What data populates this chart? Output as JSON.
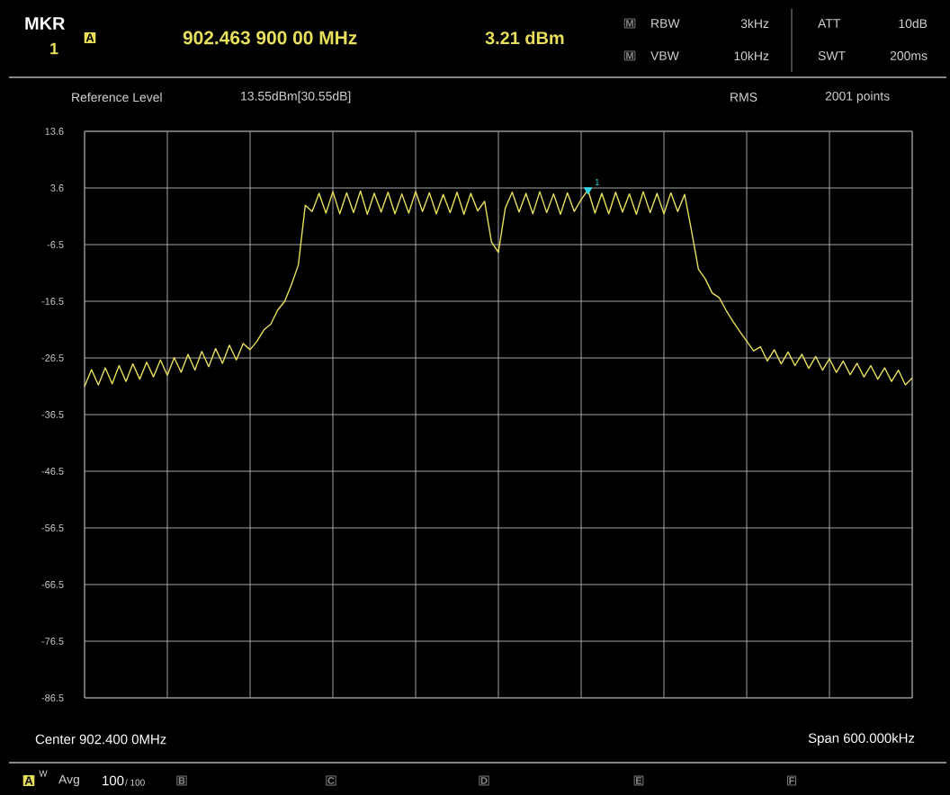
{
  "chart_data": {
    "type": "line",
    "tick_labels": "y",
    "grid": true,
    "marker": "none",
    "line_style": "solid",
    "categories": [
      null,
      null,
      null,
      null,
      null,
      null,
      null,
      null,
      null,
      null,
      null,
      null,
      null,
      null,
      null,
      null,
      null,
      null,
      null,
      null,
      null,
      null,
      null,
      null,
      null,
      null,
      null,
      null,
      null,
      null,
      null,
      null,
      null,
      null,
      null,
      null,
      null,
      null,
      null,
      null,
      null,
      null,
      null,
      null,
      null,
      null,
      null,
      null,
      null,
      null,
      null,
      null,
      null,
      null,
      null,
      null,
      null,
      null,
      null,
      null,
      null,
      null,
      null,
      null,
      null,
      null,
      null,
      null,
      null,
      null,
      null,
      null,
      null,
      null,
      null,
      null,
      null,
      null,
      null,
      null,
      null,
      null,
      null,
      null,
      null,
      null,
      null,
      null,
      null,
      null,
      null,
      null,
      null,
      null,
      null,
      null,
      null,
      null,
      null,
      null,
      null,
      null,
      null,
      null,
      null,
      null,
      null,
      null,
      null,
      null,
      null,
      null,
      null,
      null,
      null,
      null,
      null,
      null,
      null,
      null,
      null
    ],
    "ylim": [
      -86.45,
      13.55
    ],
    "yticks": [
      {
        "value": 13.55,
        "label": "13.6"
      },
      {
        "value": 3.55,
        "label": "3.6"
      },
      {
        "value": -6.45,
        "label": "-6.5"
      },
      {
        "value": -16.45,
        "label": "-16.5"
      },
      {
        "value": -26.45,
        "label": "-26.5"
      },
      {
        "value": -36.45,
        "label": "-36.5"
      },
      {
        "value": -46.45,
        "label": "-46.5"
      },
      {
        "value": -56.45,
        "label": "-56.5"
      },
      {
        "value": -66.45,
        "label": "-66.5"
      },
      {
        "value": -76.45,
        "label": "-76.5"
      },
      {
        "value": -86.45,
        "label": "-86.5"
      }
    ],
    "series": [
      {
        "color": "#e8e05a",
        "values": [
          -31.5,
          -28.5,
          -31.2,
          -28.2,
          -31.0,
          -27.8,
          -30.6,
          -27.5,
          -30.2,
          -27.2,
          -29.8,
          -26.8,
          -29.5,
          -26.4,
          -29.0,
          -25.8,
          -28.6,
          -25.3,
          -28.0,
          -24.8,
          -27.4,
          -24.2,
          -26.8,
          -23.9,
          -25.0,
          -23.5,
          -21.5,
          -20.5,
          -18.0,
          -16.5,
          -13.5,
          -10.0,
          0.5,
          -0.6,
          2.6,
          -0.9,
          2.9,
          -1.0,
          2.7,
          -0.8,
          3.0,
          -1.1,
          2.6,
          -0.7,
          2.8,
          -1.0,
          2.5,
          -0.9,
          2.9,
          -0.6,
          2.7,
          -1.0,
          2.4,
          -0.8,
          2.8,
          -1.1,
          2.6,
          -0.5,
          1.2,
          -6.0,
          -7.8,
          0.0,
          2.8,
          -0.7,
          2.6,
          -1.0,
          2.9,
          -0.8,
          2.5,
          -1.1,
          2.7,
          -0.6,
          1.5,
          3.2,
          -0.9,
          2.6,
          -1.0,
          2.8,
          -0.7,
          2.5,
          -1.1,
          2.9,
          -0.8,
          2.6,
          -1.0,
          2.7,
          -0.6,
          2.4,
          -4.0,
          -10.8,
          -12.5,
          -15.0,
          -15.8,
          -18.0,
          -20.0,
          -21.8,
          -23.5,
          -25.2,
          -24.5,
          -27.0,
          -25.0,
          -27.5,
          -25.4,
          -27.8,
          -25.8,
          -28.3,
          -26.2,
          -28.6,
          -26.6,
          -29.0,
          -27.0,
          -29.4,
          -27.4,
          -29.8,
          -27.8,
          -30.2,
          -28.2,
          -30.6,
          -28.6,
          -31.2,
          -30.0
        ]
      },
      {
        "type": "scatter",
        "color": "#33d6e6",
        "marker": "triangle",
        "values": [
          null,
          null,
          null,
          null,
          null,
          null,
          null,
          null,
          null,
          null,
          null,
          null,
          null,
          null,
          null,
          null,
          null,
          null,
          null,
          null,
          null,
          null,
          null,
          null,
          null,
          null,
          null,
          null,
          null,
          null,
          null,
          null,
          null,
          null,
          null,
          null,
          null,
          null,
          null,
          null,
          null,
          null,
          null,
          null,
          null,
          null,
          null,
          null,
          null,
          null,
          null,
          null,
          null,
          null,
          null,
          null,
          null,
          null,
          null,
          null,
          null,
          null,
          null,
          null,
          null,
          null,
          null,
          null,
          null,
          null,
          null,
          null,
          null,
          3.21,
          null,
          null,
          null,
          null,
          null,
          null,
          null,
          null,
          null,
          null,
          null,
          null,
          null,
          null,
          null,
          null,
          null,
          null,
          null,
          null,
          null,
          null,
          null,
          null,
          null,
          null,
          null,
          null,
          null,
          null,
          null,
          null,
          null,
          null,
          null,
          null,
          null,
          null,
          null,
          null,
          null,
          null,
          null,
          null,
          null,
          null,
          null
        ]
      }
    ],
    "annotations": [
      "MKR",
      "1",
      "A",
      "902.463 900 00 MHz",
      "3.21 dBm",
      "M",
      "RBW",
      "3kHz",
      "M",
      "VBW",
      "10kHz",
      "ATT",
      "10dB",
      "SWT",
      "200ms",
      "Reference Level",
      "13.55dBm[30.55dB]",
      "RMS",
      "2001 points",
      "Center 902.400 0MHz",
      "Span 600.000kHz",
      "A",
      "W",
      "Avg",
      "100",
      "/ 100",
      "B",
      "C",
      "D",
      "E",
      "F",
      {
        "text": "1",
        "y": 3.21
      }
    ]
  }
}
